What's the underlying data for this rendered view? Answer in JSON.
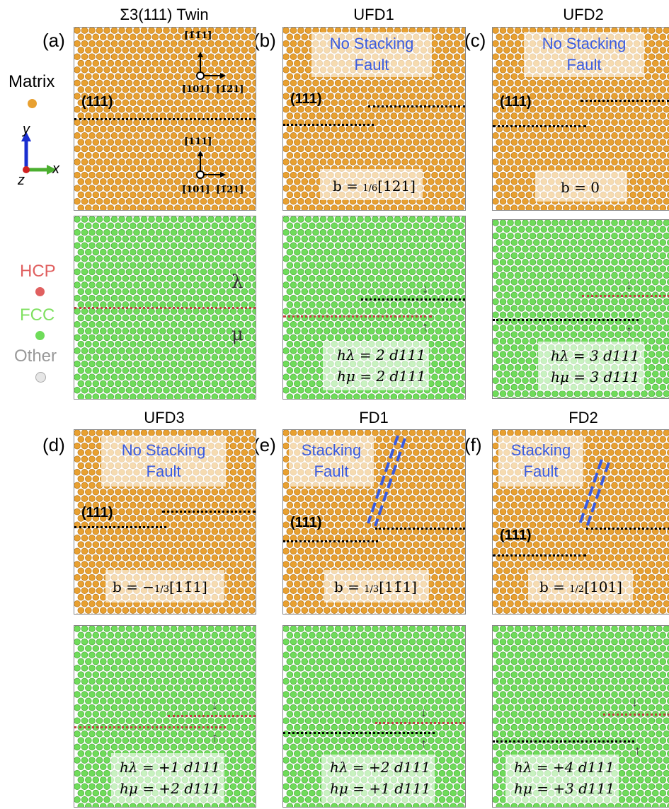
{
  "titles": {
    "a": "Σ3(111) Twin",
    "b": "UFD1",
    "c": "UFD2",
    "d": "UFD3",
    "e": "FD1",
    "f": "FD2"
  },
  "panel_labels": [
    "(a)",
    "(b)",
    "(c)",
    "(d)",
    "(e)",
    "(f)"
  ],
  "legend": {
    "matrix": {
      "label": "Matrix",
      "color": "#e8a030"
    },
    "hcp": {
      "label": "HCP",
      "color": "#e06060"
    },
    "fcc": {
      "label": "FCC",
      "color": "#6fdc5a"
    },
    "other": {
      "label": "Other",
      "color": "#e6e6e6"
    }
  },
  "axes": {
    "x": "x",
    "y": "y",
    "z": "z"
  },
  "plane": "(111)",
  "directions": {
    "top_up": "[1̄1̄1]",
    "top_left": "[̄101]",
    "top_right": "[̄1̄2̄1]",
    "bottom_up": "[111]",
    "bottom_left": "[̄101]",
    "bottom_right": "[1̄21]"
  },
  "greek": {
    "lambda": "λ",
    "mu": "μ"
  },
  "fault_text": {
    "none_line1": "No Stacking",
    "none_line2": "Fault",
    "yes_line1": "Stacking",
    "yes_line2": "Fault"
  },
  "burgers": {
    "b": {
      "lead": "b = ",
      "frac": "1/6",
      "tail": "[121]"
    },
    "c": {
      "lead": "b = 0",
      "frac": "",
      "tail": ""
    },
    "d": {
      "lead": "b = −",
      "frac": "1/3",
      "tail": "[11̄1]"
    },
    "e": {
      "lead": "b = ",
      "frac": "1/3",
      "tail": "[11̄1]"
    },
    "f": {
      "lead": "b = ",
      "frac": "1/2",
      "tail": "[101]"
    }
  },
  "step_heights": {
    "b": {
      "h_lambda": "hλ = 2 d111",
      "h_mu": "hμ = 2 d111"
    },
    "c": {
      "h_lambda": "hλ = 3 d111",
      "h_mu": "hμ = 3 d111"
    },
    "d": {
      "h_lambda": "hλ = +1 d111",
      "h_mu": "hμ = +2 d111"
    },
    "e": {
      "h_lambda": "hλ = +2 d111",
      "h_mu": "hμ = +1 d111"
    },
    "f": {
      "h_lambda": "hλ = +4 d111",
      "h_mu": "hμ = +3 d111"
    }
  }
}
